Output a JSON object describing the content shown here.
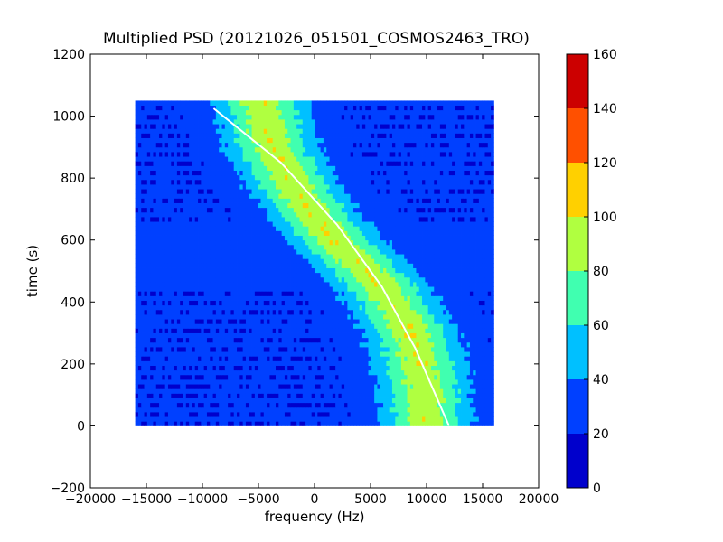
{
  "chart_data": {
    "type": "heatmap",
    "title": "Multiplied PSD (20121026_051501_COSMOS2463_TRO)",
    "xlabel": "frequency (Hz)",
    "ylabel": "time (s)",
    "xlim": [
      -20000,
      20000
    ],
    "ylim": [
      -200,
      1200
    ],
    "x_ticks": [
      -20000,
      -15000,
      -10000,
      -5000,
      0,
      5000,
      10000,
      15000,
      20000
    ],
    "y_ticks": [
      -200,
      0,
      200,
      400,
      600,
      800,
      1000,
      1200
    ],
    "grid": false,
    "data_extent": {
      "x": [
        -16000,
        16000
      ],
      "y": [
        0,
        1050
      ]
    },
    "background_level": 25,
    "band": {
      "description": "S-shaped Doppler trace",
      "center_x_at_y": [
        [
          1050,
          -4800
        ],
        [
          900,
          -3800
        ],
        [
          750,
          -1500
        ],
        [
          600,
          1800
        ],
        [
          450,
          6000
        ],
        [
          300,
          8700
        ],
        [
          150,
          9700
        ],
        [
          0,
          10000
        ]
      ],
      "peak_value": 90
    },
    "overlay_curve": {
      "color": "#ffffff",
      "points": [
        [
          -9000,
          1025
        ],
        [
          -3000,
          850
        ],
        [
          2000,
          650
        ],
        [
          6000,
          450
        ],
        [
          9000,
          250
        ],
        [
          12000,
          0
        ]
      ]
    },
    "colorbar": {
      "levels": [
        0,
        20,
        40,
        60,
        80,
        100,
        120,
        140,
        160
      ],
      "colors": [
        "#0000cc",
        "#0040ff",
        "#00c0ff",
        "#40ffb0",
        "#b0ff40",
        "#ffd000",
        "#ff5000",
        "#cc0000"
      ],
      "tick_labels": [
        "0",
        "20",
        "40",
        "60",
        "80",
        "100",
        "120",
        "140",
        "160"
      ]
    }
  }
}
